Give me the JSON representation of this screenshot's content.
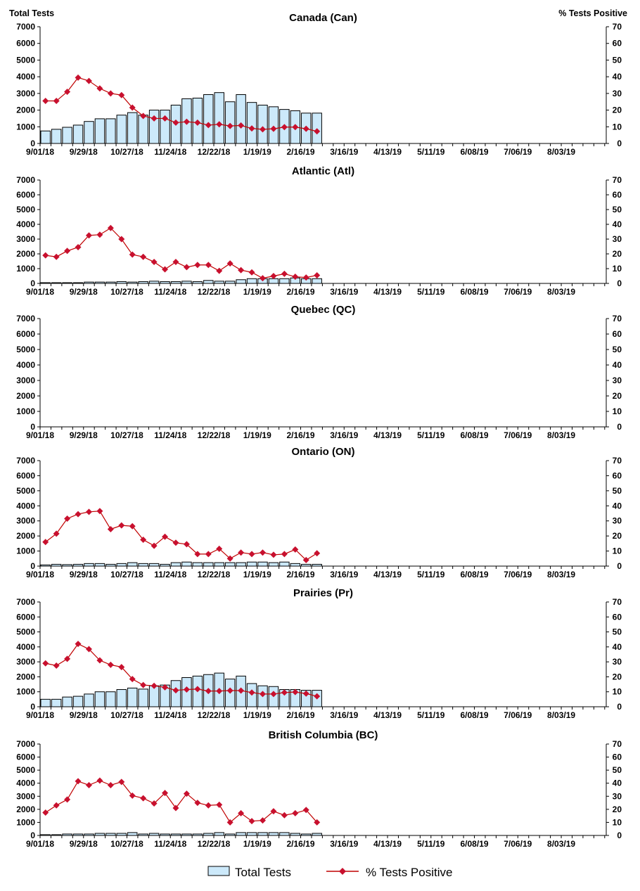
{
  "chart_data": {
    "type": "bar+line",
    "y_left_label": "Total Tests",
    "y_right_label": "% Tests Positive",
    "y_left_range": [
      0,
      7000
    ],
    "y_left_ticks": [
      0,
      1000,
      2000,
      3000,
      4000,
      5000,
      6000,
      7000
    ],
    "y_right_range": [
      0,
      70
    ],
    "y_right_ticks": [
      0,
      10,
      20,
      30,
      40,
      50,
      60,
      70
    ],
    "x_range": [
      "9/01/18",
      "8/31/19"
    ],
    "x_tick_labels": [
      "9/01/18",
      "9/29/18",
      "10/27/18",
      "11/24/18",
      "12/22/18",
      "1/19/19",
      "2/16/19",
      "3/16/19",
      "4/13/19",
      "5/11/19",
      "6/08/19",
      "7/06/19",
      "8/03/19"
    ],
    "x": [
      "9/01/18",
      "9/08/18",
      "9/15/18",
      "9/22/18",
      "9/29/18",
      "10/06/18",
      "10/13/18",
      "10/20/18",
      "10/27/18",
      "11/03/18",
      "11/10/18",
      "11/17/18",
      "11/24/18",
      "12/01/18",
      "12/08/18",
      "12/15/18",
      "12/22/18",
      "12/29/18",
      "1/05/19",
      "1/12/19",
      "1/19/19",
      "1/26/19",
      "2/02/19",
      "2/09/19",
      "2/16/19",
      "2/23/19"
    ],
    "legend": {
      "placement": "bottom",
      "entries": [
        "Total Tests",
        "% Tests Positive"
      ]
    },
    "colors": {
      "bars": "#cce9fa",
      "bar_edge": "#000000",
      "line": "#c00000",
      "marker": "#c8102e"
    },
    "panels": [
      {
        "title": "Canada (Can)",
        "total_tests": [
          750,
          850,
          970,
          1100,
          1320,
          1480,
          1480,
          1700,
          1850,
          1700,
          2000,
          2000,
          2300,
          2680,
          2720,
          2930,
          3050,
          2500,
          2930,
          2460,
          2300,
          2200,
          2040,
          1960,
          1820,
          1820
        ],
        "pct_positive": [
          25.5,
          25.5,
          31,
          39.5,
          37.5,
          33,
          30,
          29,
          21.5,
          16.5,
          15,
          15,
          12.5,
          13,
          12.5,
          11,
          11.5,
          10.5,
          10.8,
          9,
          8.5,
          8.8,
          9.8,
          9.8,
          8.8,
          7.3
        ]
      },
      {
        "title": "Atlantic (Atl)",
        "total_tests": [
          50,
          50,
          50,
          50,
          90,
          90,
          90,
          120,
          90,
          120,
          150,
          120,
          120,
          150,
          120,
          200,
          150,
          150,
          250,
          320,
          320,
          320,
          320,
          370,
          320,
          320
        ],
        "pct_positive": [
          19,
          18,
          22,
          24.5,
          32.5,
          33,
          37.5,
          30,
          19.5,
          18,
          14.5,
          9.5,
          14.5,
          11,
          12.5,
          12.5,
          8.5,
          13.5,
          9,
          7.5,
          3.5,
          5,
          6.5,
          4.5,
          4,
          5.5
        ]
      },
      {
        "title": "Quebec (QC)",
        "total_tests": [],
        "pct_positive": []
      },
      {
        "title": "Ontario (ON)",
        "total_tests": [
          80,
          120,
          100,
          120,
          170,
          170,
          120,
          170,
          230,
          170,
          170,
          120,
          230,
          270,
          230,
          230,
          230,
          230,
          230,
          270,
          270,
          230,
          270,
          170,
          120,
          120
        ],
        "pct_positive": [
          16,
          21.5,
          31.5,
          34.5,
          36,
          36.5,
          24.5,
          27,
          26.5,
          17.5,
          13.5,
          19.5,
          15.5,
          14.5,
          8,
          8,
          11.5,
          5,
          9,
          8,
          9,
          7.5,
          8,
          11,
          4,
          8.5
        ]
      },
      {
        "title": "Prairies (Pr)",
        "total_tests": [
          500,
          500,
          650,
          700,
          850,
          1000,
          1000,
          1150,
          1250,
          1180,
          1400,
          1450,
          1750,
          1950,
          2050,
          2150,
          2250,
          1850,
          2050,
          1550,
          1400,
          1350,
          1150,
          1150,
          1100,
          1100
        ],
        "pct_positive": [
          29,
          27.5,
          32,
          42,
          38.5,
          31,
          28,
          26.5,
          18.5,
          14.5,
          14,
          13,
          11,
          11.5,
          11.8,
          10.5,
          10.5,
          10.8,
          10.8,
          9.5,
          8.5,
          8.5,
          9.5,
          9.8,
          8.8,
          7
        ]
      },
      {
        "title": "British Columbia (BC)",
        "total_tests": [
          60,
          60,
          110,
          110,
          110,
          160,
          160,
          160,
          220,
          110,
          160,
          110,
          110,
          110,
          110,
          160,
          220,
          110,
          220,
          220,
          220,
          220,
          220,
          160,
          110,
          160
        ],
        "pct_positive": [
          17.5,
          23,
          27.5,
          41.5,
          38.5,
          42,
          38.5,
          41,
          30.5,
          28.5,
          24.5,
          32.5,
          21,
          32,
          25,
          23,
          23.5,
          10,
          17,
          11,
          11.5,
          18.5,
          15.5,
          17,
          19.5,
          10
        ]
      }
    ]
  }
}
